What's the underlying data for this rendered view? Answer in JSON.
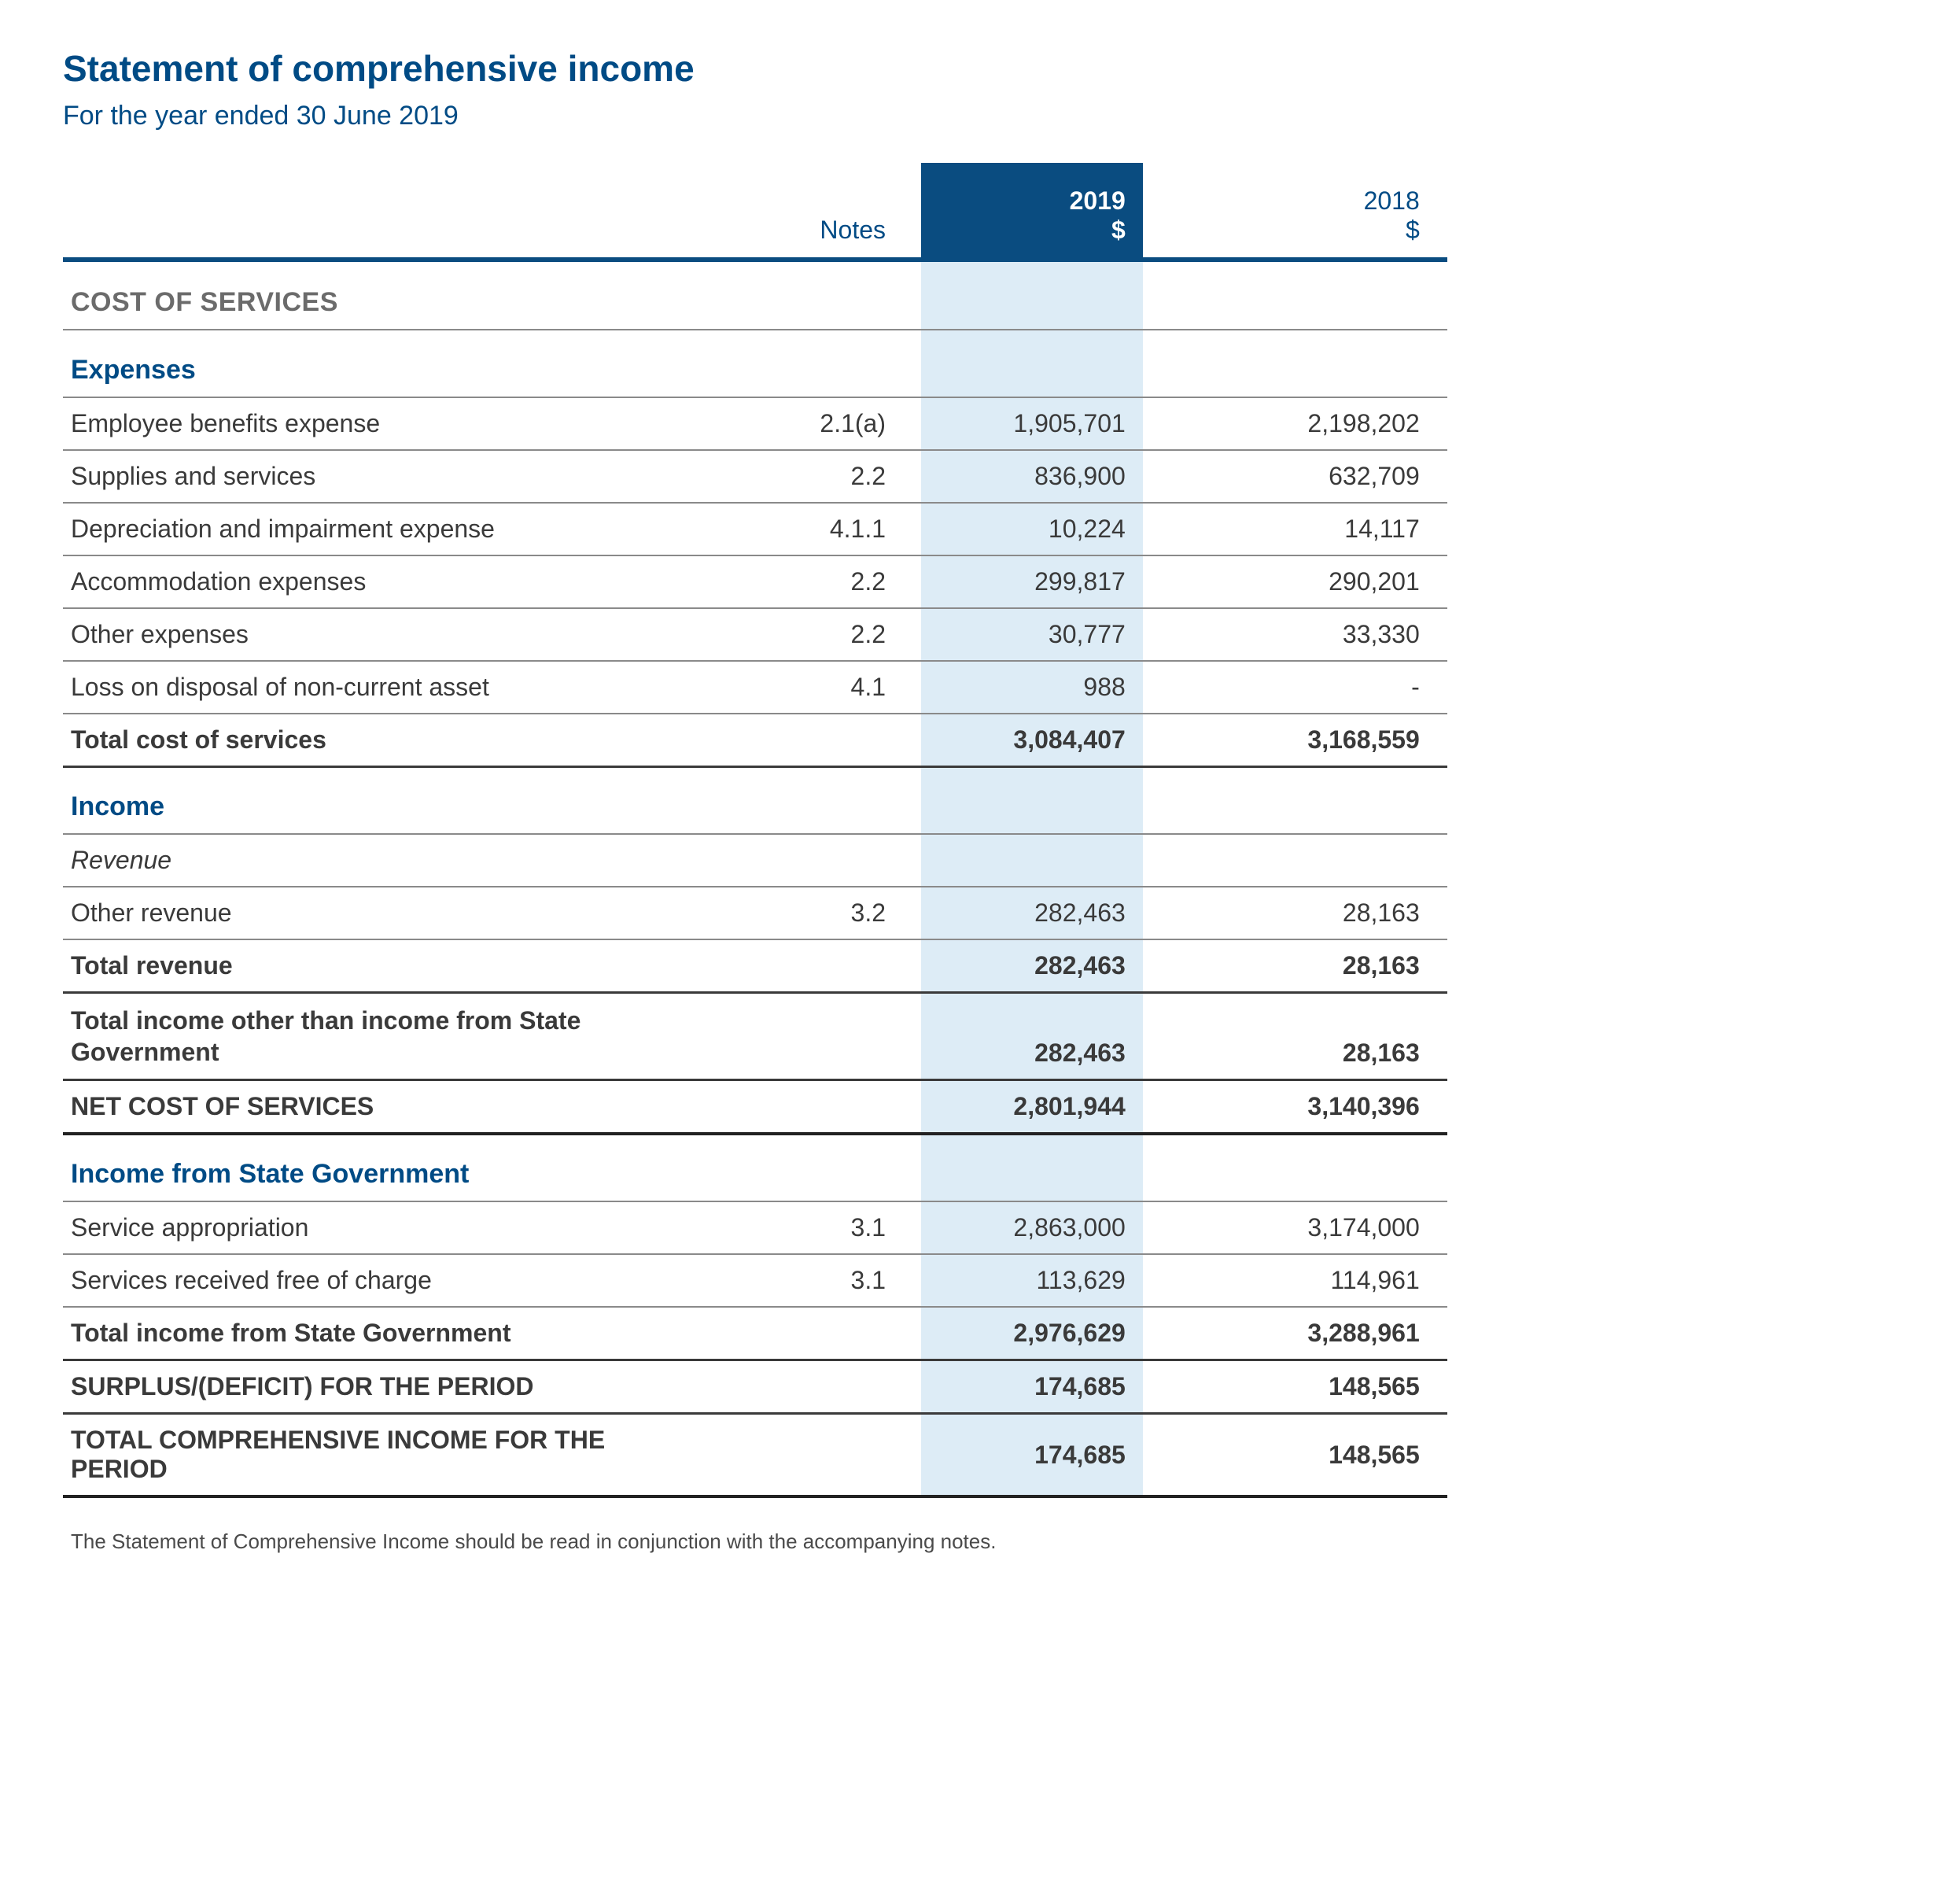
{
  "title": "Statement of comprehensive income",
  "subtitle": "For the year ended 30 June 2019",
  "columns": {
    "notes_label": "Notes",
    "current_year": "2019",
    "current_currency": "$",
    "prior_year": "2018",
    "prior_currency": "$"
  },
  "colors": {
    "brand_blue": "#004B85",
    "header_fill": "#0A4C80",
    "highlight_fill": "#DDECF6",
    "rule_grey": "#8a8a8a",
    "text": "#3a3a3a"
  },
  "sections": {
    "cost_of_services_hdr": "COST OF SERVICES",
    "expenses_hdr": "Expenses",
    "income_hdr": "Income",
    "revenue_hdr": "Revenue",
    "income_state_hdr": "Income from State Government"
  },
  "rows": {
    "emp_benefits": {
      "label": "Employee benefits expense",
      "note": "2.1(a)",
      "cur": "1,905,701",
      "prev": "2,198,202"
    },
    "supplies": {
      "label": "Supplies and services",
      "note": "2.2",
      "cur": "836,900",
      "prev": "632,709"
    },
    "depreciation": {
      "label": "Depreciation and impairment expense",
      "note": "4.1.1",
      "cur": "10,224",
      "prev": "14,117"
    },
    "accommodation": {
      "label": "Accommodation expenses",
      "note": "2.2",
      "cur": "299,817",
      "prev": "290,201"
    },
    "other_exp": {
      "label": "Other expenses",
      "note": "2.2",
      "cur": "30,777",
      "prev": "33,330"
    },
    "loss_disposal": {
      "label": "Loss on disposal of non-current asset",
      "note": "4.1",
      "cur": "988",
      "prev": "-"
    },
    "total_cost": {
      "label": "Total cost of services",
      "note": "",
      "cur": "3,084,407",
      "prev": "3,168,559"
    },
    "other_rev": {
      "label": "Other revenue",
      "note": "3.2",
      "cur": "282,463",
      "prev": "28,163"
    },
    "total_rev": {
      "label": "Total revenue",
      "note": "",
      "cur": "282,463",
      "prev": "28,163"
    },
    "total_inc_other": {
      "label": "Total income other than income from State Government",
      "note": "",
      "cur": "282,463",
      "prev": "28,163"
    },
    "net_cost": {
      "label": "NET COST OF SERVICES",
      "note": "",
      "cur": "2,801,944",
      "prev": "3,140,396"
    },
    "svc_approp": {
      "label": "Service appropriation",
      "note": "3.1",
      "cur": "2,863,000",
      "prev": "3,174,000"
    },
    "svc_free": {
      "label": "Services received free of charge",
      "note": "3.1",
      "cur": "113,629",
      "prev": "114,961"
    },
    "total_state": {
      "label": "Total income from State Government",
      "note": "",
      "cur": "2,976,629",
      "prev": "3,288,961"
    },
    "surplus": {
      "label": "SURPLUS/(DEFICIT) FOR THE PERIOD",
      "note": "",
      "cur": "174,685",
      "prev": "148,565"
    },
    "total_comp": {
      "label": "TOTAL COMPREHENSIVE INCOME FOR THE PERIOD",
      "note": "",
      "cur": "174,685",
      "prev": "148,565"
    }
  },
  "footnote": "The Statement of Comprehensive Income should be read in conjunction with the accompanying notes."
}
